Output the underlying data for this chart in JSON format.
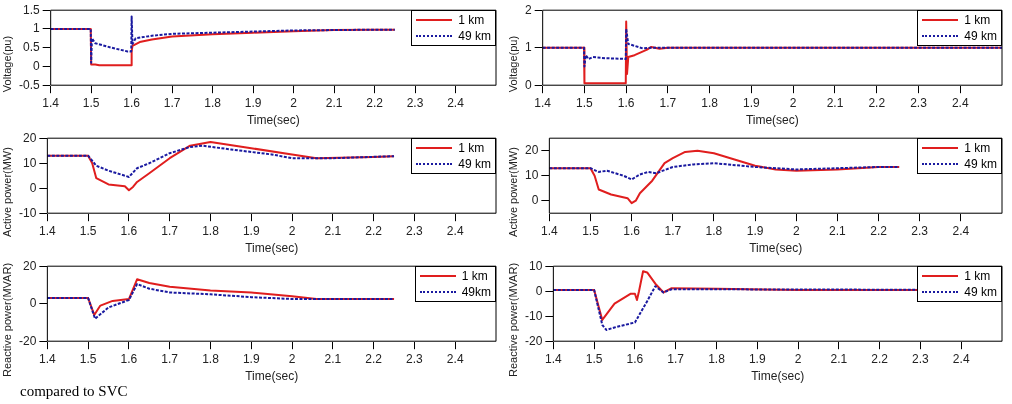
{
  "chart_data": [
    {
      "type": "line",
      "xlabel": "Time(sec)",
      "ylabel": "Voltage(pu)",
      "xlim": [
        1.4,
        2.5
      ],
      "xticks": [
        1.4,
        1.5,
        1.6,
        1.7,
        1.8,
        1.9,
        2,
        2.1,
        2.2,
        2.3,
        2.4
      ],
      "ylim": [
        -0.5,
        1.5
      ],
      "yticks": [
        -0.5,
        0,
        0.5,
        1,
        1.5
      ],
      "grid": false,
      "legend": "top right",
      "marker": "none",
      "series": [
        {
          "name": "1 km",
          "color": "#e01e1e",
          "line_style": "solid",
          "x": [
            1.4,
            1.499,
            1.5,
            1.51,
            1.52,
            1.599,
            1.6,
            1.602,
            1.62,
            1.65,
            1.7,
            1.8,
            1.9,
            2.0,
            2.1,
            2.2,
            2.25
          ],
          "values": [
            1,
            1,
            0.05,
            0.05,
            0.03,
            0.03,
            0.4,
            0.55,
            0.65,
            0.72,
            0.8,
            0.86,
            0.9,
            0.94,
            0.97,
            0.98,
            0.98
          ]
        },
        {
          "name": "49 km",
          "color": "#1a1aa0",
          "line_style": "dotted",
          "x": [
            1.4,
            1.499,
            1.5,
            1.502,
            1.51,
            1.55,
            1.59,
            1.599,
            1.6,
            1.602,
            1.61,
            1.65,
            1.7,
            1.8,
            1.9,
            2.0,
            2.2,
            2.25
          ],
          "values": [
            1,
            1,
            0.1,
            0.75,
            0.62,
            0.5,
            0.4,
            0.4,
            1.33,
            0.6,
            0.75,
            0.82,
            0.87,
            0.9,
            0.93,
            0.96,
            0.98,
            0.98
          ]
        }
      ]
    },
    {
      "type": "line",
      "xlabel": "Time(sec)",
      "ylabel": "Voltage(pu)",
      "xlim": [
        1.4,
        2.5
      ],
      "xticks": [
        1.4,
        1.5,
        1.6,
        1.7,
        1.8,
        1.9,
        2,
        2.1,
        2.2,
        2.3,
        2.4
      ],
      "ylim": [
        0,
        2
      ],
      "yticks": [
        0,
        1,
        2
      ],
      "grid": false,
      "legend": "top right",
      "marker": "none",
      "series": [
        {
          "name": "1 km",
          "color": "#e01e1e",
          "line_style": "solid",
          "x": [
            1.4,
            1.499,
            1.5,
            1.599,
            1.6,
            1.602,
            1.605,
            1.62,
            1.65,
            1.66,
            1.68,
            1.7,
            2.5
          ],
          "values": [
            1,
            1,
            0.05,
            0.05,
            1.7,
            0.3,
            0.75,
            0.8,
            0.95,
            1.02,
            0.97,
            1.0,
            1.0
          ]
        },
        {
          "name": "49 km",
          "color": "#1a1aa0",
          "line_style": "dotted",
          "x": [
            1.4,
            1.499,
            1.5,
            1.503,
            1.51,
            1.52,
            1.55,
            1.599,
            1.6,
            1.605,
            1.62,
            1.64,
            1.66,
            2.5
          ],
          "values": [
            1,
            1,
            0.5,
            0.8,
            0.7,
            0.75,
            0.72,
            0.7,
            1.5,
            1.1,
            1.05,
            0.98,
            1.0,
            1.0
          ]
        }
      ]
    },
    {
      "type": "line",
      "xlabel": "Time(sec)",
      "ylabel": "Active power(MW)",
      "xlim": [
        1.4,
        2.5
      ],
      "xticks": [
        1.4,
        1.5,
        1.6,
        1.7,
        1.8,
        1.9,
        2,
        2.1,
        2.2,
        2.3,
        2.4
      ],
      "ylim": [
        -10,
        20
      ],
      "yticks": [
        -10,
        0,
        10,
        20
      ],
      "grid": false,
      "legend": "top right",
      "marker": "none",
      "series": [
        {
          "name": "1 km",
          "color": "#e01e1e",
          "line_style": "solid",
          "x": [
            1.4,
            1.5,
            1.51,
            1.52,
            1.55,
            1.59,
            1.6,
            1.61,
            1.62,
            1.65,
            1.7,
            1.75,
            1.8,
            1.9,
            2.0,
            2.06,
            2.2,
            2.25
          ],
          "values": [
            13,
            13,
            10,
            4,
            1.5,
            0.8,
            -0.8,
            0.5,
            2.5,
            6,
            12,
            17,
            18.5,
            16,
            13.5,
            12,
            12.5,
            12.8
          ]
        },
        {
          "name": "49 km",
          "color": "#1a1aa0",
          "line_style": "dotted",
          "x": [
            1.4,
            1.5,
            1.52,
            1.55,
            1.6,
            1.62,
            1.65,
            1.7,
            1.75,
            1.78,
            1.85,
            1.95,
            2.0,
            2.1,
            2.25
          ],
          "values": [
            13,
            13,
            9,
            7,
            4.5,
            8,
            10,
            14,
            16.5,
            17,
            15.5,
            13.5,
            12,
            12,
            12.8
          ]
        }
      ]
    },
    {
      "type": "line",
      "xlabel": "Time(sec)",
      "ylabel": "Active power(MW)",
      "xlim": [
        1.4,
        2.5
      ],
      "xticks": [
        1.4,
        1.5,
        1.6,
        1.7,
        1.8,
        1.9,
        2,
        2.1,
        2.2,
        2.3,
        2.4
      ],
      "ylim": [
        -5,
        25
      ],
      "yticks": [
        0,
        10,
        20
      ],
      "grid": false,
      "legend": "top right",
      "marker": "none",
      "series": [
        {
          "name": "1 km",
          "color": "#e01e1e",
          "line_style": "solid",
          "x": [
            1.4,
            1.5,
            1.51,
            1.52,
            1.55,
            1.59,
            1.6,
            1.61,
            1.62,
            1.65,
            1.68,
            1.7,
            1.73,
            1.76,
            1.8,
            1.85,
            1.9,
            1.95,
            2.0,
            2.1,
            2.2,
            2.25
          ],
          "values": [
            13,
            13,
            10,
            4.5,
            2.5,
            1,
            -1,
            0,
            3,
            8,
            15,
            17,
            19.5,
            20,
            19,
            16.5,
            14,
            12.5,
            12,
            12.5,
            13.5,
            13.5
          ]
        },
        {
          "name": "49 km",
          "color": "#1a1aa0",
          "line_style": "dotted",
          "x": [
            1.4,
            1.5,
            1.52,
            1.54,
            1.58,
            1.6,
            1.62,
            1.64,
            1.66,
            1.7,
            1.75,
            1.8,
            1.9,
            2.0,
            2.2,
            2.25
          ],
          "values": [
            13,
            13,
            11.5,
            12,
            10,
            8.5,
            10.5,
            11.5,
            11,
            13.5,
            14.5,
            15,
            13.5,
            12.5,
            13.5,
            13.5
          ]
        }
      ]
    },
    {
      "type": "line",
      "xlabel": "Time(sec)",
      "ylabel": "Reactive power(MVAR)",
      "xlim": [
        1.4,
        2.5
      ],
      "xticks": [
        1.4,
        1.5,
        1.6,
        1.7,
        1.8,
        1.9,
        2,
        2.1,
        2.2,
        2.3,
        2.4
      ],
      "ylim": [
        -20,
        20
      ],
      "yticks": [
        -20,
        0,
        20
      ],
      "grid": false,
      "legend": "top right",
      "marker": "none",
      "annotations": [
        "compared to SVC"
      ],
      "series": [
        {
          "name": "1 km",
          "color": "#e01e1e",
          "line_style": "solid",
          "x": [
            1.4,
            1.5,
            1.515,
            1.53,
            1.56,
            1.6,
            1.62,
            1.65,
            1.7,
            1.8,
            1.9,
            2.0,
            2.06,
            2.25
          ],
          "values": [
            3,
            3,
            -6,
            -1,
            1.5,
            2.5,
            13,
            11,
            9,
            7,
            6,
            4,
            2.5,
            2.5
          ]
        },
        {
          "name": "49km",
          "color": "#1a1aa0",
          "line_style": "dotted",
          "x": [
            1.4,
            1.5,
            1.517,
            1.55,
            1.6,
            1.62,
            1.65,
            1.7,
            1.8,
            1.9,
            2.0,
            2.25
          ],
          "values": [
            3,
            3,
            -8,
            -2,
            2,
            10.5,
            8,
            6,
            5,
            3.5,
            2.5,
            2.5
          ]
        }
      ]
    },
    {
      "type": "line",
      "xlabel": "Time(sec)",
      "ylabel": "Reactive power(MVAR)",
      "xlim": [
        1.4,
        2.5
      ],
      "xticks": [
        1.4,
        1.5,
        1.6,
        1.7,
        1.8,
        1.9,
        2,
        2.1,
        2.2,
        2.3,
        2.4
      ],
      "ylim": [
        -20,
        10
      ],
      "yticks": [
        -20,
        -10,
        0,
        10
      ],
      "grid": false,
      "legend": "top right",
      "marker": "none",
      "series": [
        {
          "name": "1 km",
          "color": "#e01e1e",
          "line_style": "solid",
          "x": [
            1.4,
            1.5,
            1.52,
            1.55,
            1.59,
            1.6,
            1.605,
            1.61,
            1.62,
            1.63,
            1.65,
            1.67,
            1.69,
            1.8,
            2.0,
            2.5
          ],
          "values": [
            0.5,
            0.5,
            -11.5,
            -5,
            -1,
            -1,
            -3.5,
            0,
            8,
            7.5,
            3,
            -0.5,
            1.2,
            1,
            0.5,
            0.5
          ]
        },
        {
          "name": "49 km",
          "color": "#1a1aa0",
          "line_style": "dotted",
          "x": [
            1.4,
            1.5,
            1.52,
            1.53,
            1.55,
            1.6,
            1.63,
            1.65,
            1.67,
            1.69,
            2.5
          ],
          "values": [
            0.5,
            0.5,
            -13.5,
            -15.5,
            -14.5,
            -12.5,
            -4,
            2,
            -0.5,
            0.8,
            0.5
          ]
        }
      ]
    }
  ]
}
